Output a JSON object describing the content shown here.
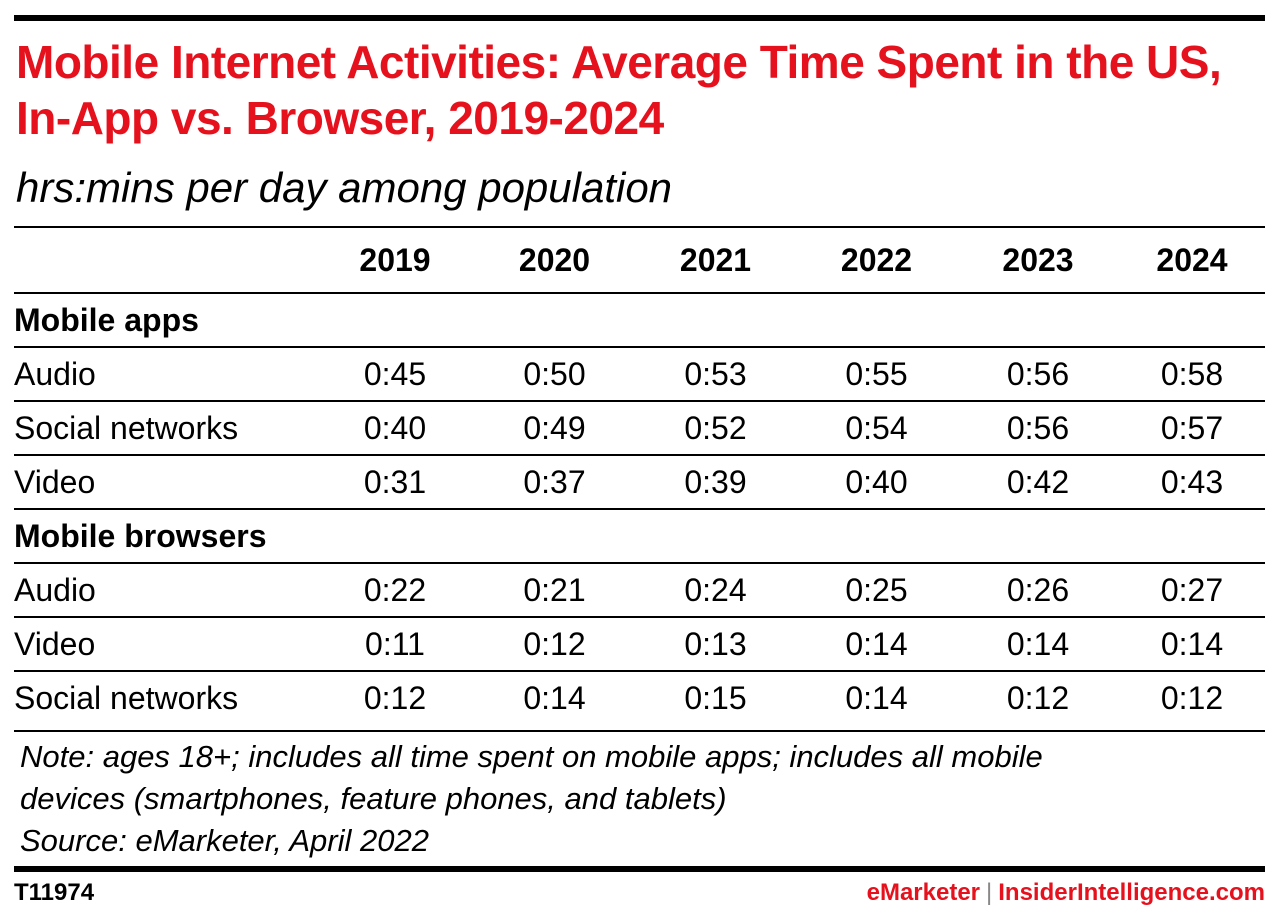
{
  "header": {
    "title": "Mobile Internet Activities: Average Time Spent in the US, In-App vs. Browser, 2019-2024",
    "subtitle": "hrs:mins per day among population"
  },
  "colors": {
    "accent": "#e5121e",
    "text": "#000000",
    "rule": "#000000"
  },
  "chart_data": {
    "type": "table",
    "title": "Mobile Internet Activities: Average Time Spent in the US, In-App vs. Browser, 2019-2024",
    "subtitle": "hrs:mins per day among population",
    "columns": [
      "2019",
      "2020",
      "2021",
      "2022",
      "2023",
      "2024"
    ],
    "groups": [
      {
        "label": "Mobile apps",
        "rows": [
          {
            "label": "Audio",
            "values": [
              "0:45",
              "0:50",
              "0:53",
              "0:55",
              "0:56",
              "0:58"
            ]
          },
          {
            "label": "Social networks",
            "values": [
              "0:40",
              "0:49",
              "0:52",
              "0:54",
              "0:56",
              "0:57"
            ]
          },
          {
            "label": "Video",
            "values": [
              "0:31",
              "0:37",
              "0:39",
              "0:40",
              "0:42",
              "0:43"
            ]
          }
        ]
      },
      {
        "label": "Mobile browsers",
        "rows": [
          {
            "label": "Audio",
            "values": [
              "0:22",
              "0:21",
              "0:24",
              "0:25",
              "0:26",
              "0:27"
            ]
          },
          {
            "label": "Video",
            "values": [
              "0:11",
              "0:12",
              "0:13",
              "0:14",
              "0:14",
              "0:14"
            ]
          },
          {
            "label": "Social networks",
            "values": [
              "0:12",
              "0:14",
              "0:15",
              "0:14",
              "0:12",
              "0:12"
            ]
          }
        ]
      }
    ]
  },
  "notes": {
    "note_line_1": "Note: ages 18+; includes all time spent on mobile apps; includes all mobile",
    "note_line_2": "devices (smartphones, feature phones, and tablets)",
    "source": "Source: eMarketer, April 2022"
  },
  "footer": {
    "chart_id": "T11974",
    "brand_primary": "eMarketer",
    "brand_separator": "|",
    "brand_secondary": "InsiderIntelligence.com"
  }
}
